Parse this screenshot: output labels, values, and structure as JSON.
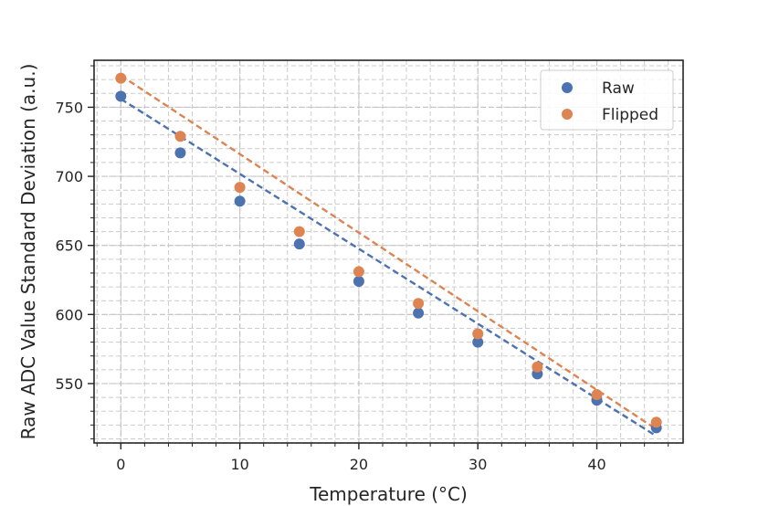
{
  "chart_data": {
    "type": "scatter",
    "title": "",
    "xlabel": "Temperature (°C)",
    "ylabel": "Raw ADC Value Standard Deviation (a.u.)",
    "xlim": [
      -2.25,
      47.25
    ],
    "ylim": [
      507,
      784
    ],
    "x_major_ticks": [
      0,
      10,
      20,
      30,
      40
    ],
    "x_tick_labels": [
      "0",
      "10",
      "20",
      "30",
      "40"
    ],
    "x_minor_step": 2,
    "y_major_ticks": [
      550,
      600,
      650,
      700,
      750
    ],
    "y_tick_labels": [
      "550",
      "600",
      "650",
      "700",
      "750"
    ],
    "y_minor_step": 10,
    "grid": true,
    "legend_position": "top-right",
    "x": [
      0,
      5,
      10,
      15,
      20,
      25,
      30,
      35,
      40,
      45
    ],
    "series": [
      {
        "name": "Raw",
        "color": "#4c72b0",
        "values": [
          758,
          717,
          682,
          651,
          624,
          601,
          580,
          557,
          538,
          518
        ],
        "fit": [
          756,
          512
        ]
      },
      {
        "name": "Flipped",
        "color": "#dd8452",
        "values": [
          771,
          729,
          692,
          660,
          631,
          608,
          586,
          562,
          542,
          522
        ],
        "fit": [
          773,
          517
        ]
      }
    ]
  }
}
